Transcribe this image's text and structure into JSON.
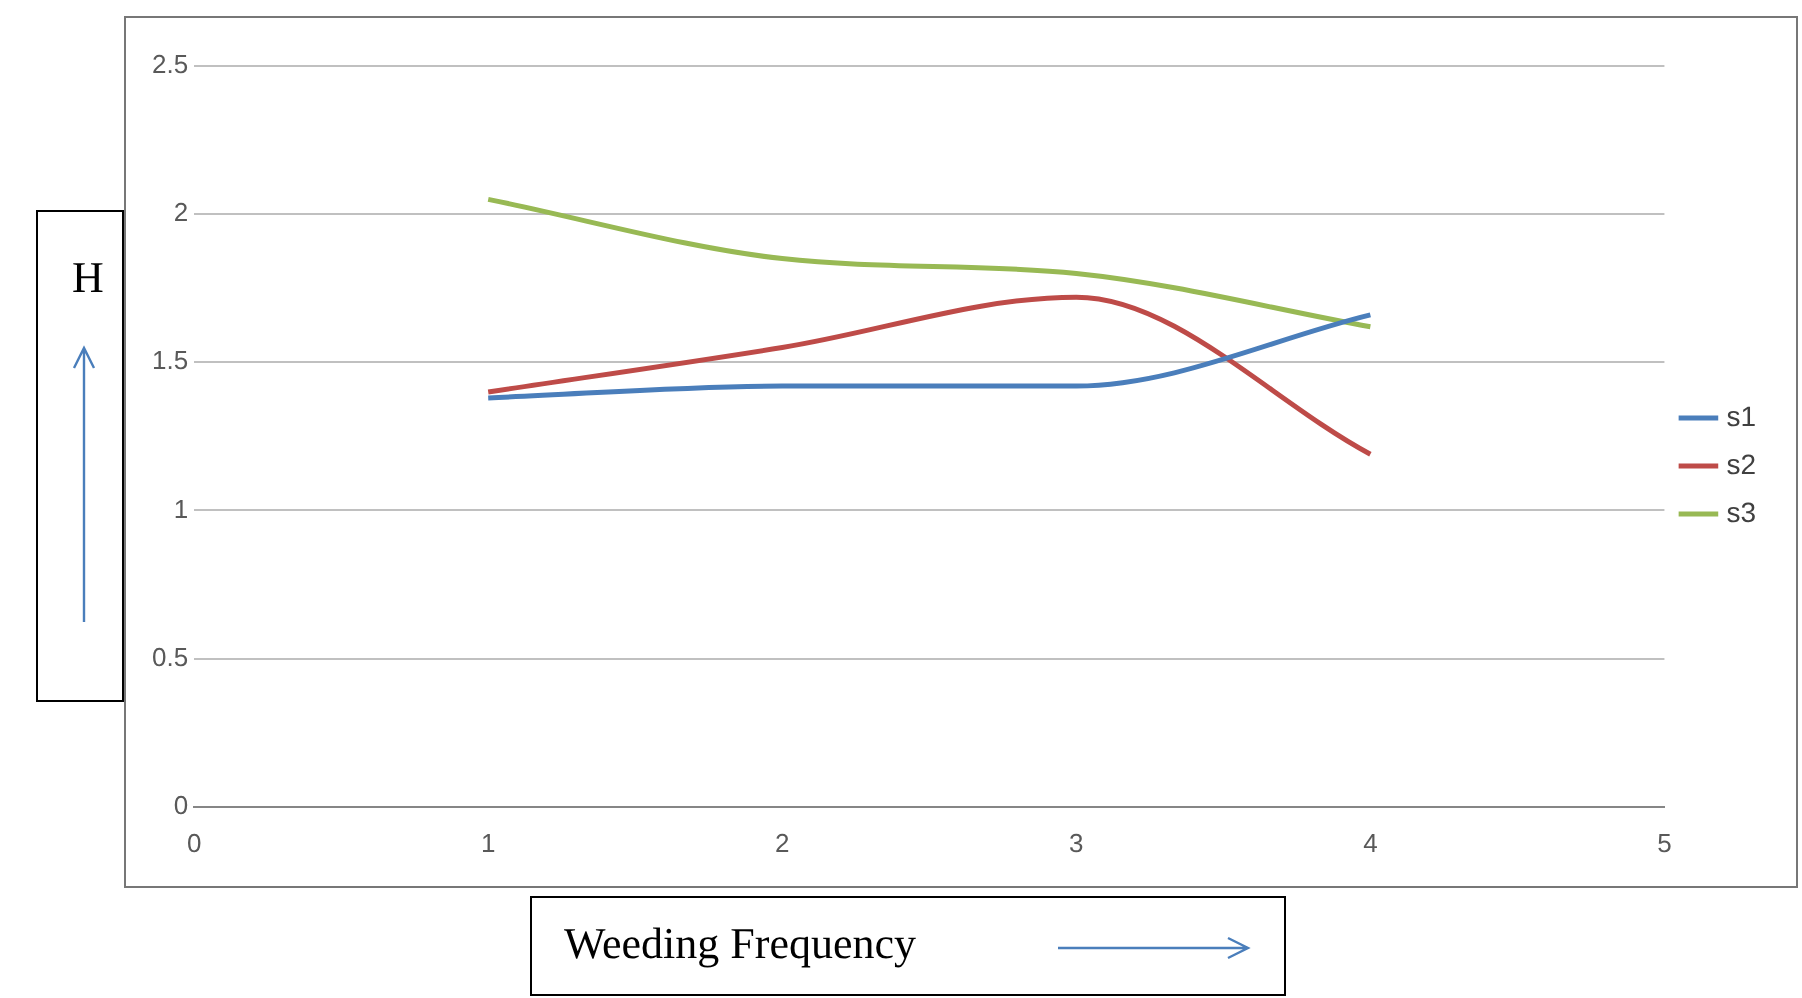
{
  "chart_data": {
    "type": "line",
    "xlabel": "Weeding Frequency",
    "ylabel": "H",
    "x": [
      1,
      2,
      3,
      4
    ],
    "series": [
      {
        "name": "s1",
        "color": "#4a7ebb",
        "values": [
          1.38,
          1.42,
          1.42,
          1.66
        ]
      },
      {
        "name": "s2",
        "color": "#be4b48",
        "values": [
          1.4,
          1.55,
          1.72,
          1.19
        ]
      },
      {
        "name": "s3",
        "color": "#98b954",
        "values": [
          2.05,
          1.85,
          1.8,
          1.62
        ]
      }
    ],
    "xlim": [
      0,
      5
    ],
    "xticks": [
      0,
      1,
      2,
      3,
      4,
      5
    ],
    "ylim": [
      0,
      2.5
    ],
    "yticks": [
      0,
      0.5,
      1,
      1.5,
      2,
      2.5
    ],
    "grid": "y",
    "legend": "right",
    "marker": "none",
    "line_style": "solid"
  }
}
